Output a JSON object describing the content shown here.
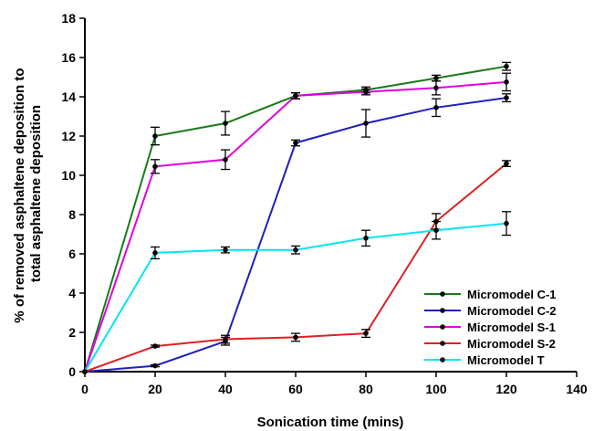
{
  "chart_data": {
    "type": "line",
    "xlabel": "Sonication time (mins)",
    "ylabel_lines": [
      "% of removed asphaltene deposition to",
      "total asphaltene deposition"
    ],
    "xlim": [
      0,
      140
    ],
    "ylim": [
      0,
      18
    ],
    "xticks": [
      0,
      20,
      40,
      60,
      80,
      100,
      120,
      140
    ],
    "yticks": [
      0,
      2,
      4,
      6,
      8,
      10,
      12,
      14,
      16,
      18
    ],
    "grid": false,
    "legend_position": "bottom-right",
    "x": [
      0,
      20,
      40,
      60,
      80,
      100,
      120
    ],
    "series": [
      {
        "name": "Micromodel C-1",
        "color": "#1a7a1a",
        "values": [
          0,
          12.0,
          12.65,
          14.05,
          14.35,
          14.95,
          15.55
        ],
        "errors": [
          0,
          0.45,
          0.6,
          0.15,
          0.15,
          0.15,
          0.2
        ]
      },
      {
        "name": "Micromodel C-2",
        "color": "#1f1fbf",
        "values": [
          0,
          0.3,
          1.55,
          11.65,
          12.65,
          13.45,
          13.95
        ],
        "errors": [
          0,
          0.05,
          0.2,
          0.15,
          0.7,
          0.45,
          0.2
        ]
      },
      {
        "name": "Micromodel S-1",
        "color": "#e000e0",
        "values": [
          0,
          10.45,
          10.8,
          14.05,
          14.25,
          14.45,
          14.75
        ],
        "errors": [
          0,
          0.35,
          0.5,
          0.15,
          0.15,
          0.35,
          0.45
        ]
      },
      {
        "name": "Micromodel S-2",
        "color": "#e02020",
        "values": [
          0,
          1.3,
          1.65,
          1.75,
          1.95,
          7.65,
          10.6
        ],
        "errors": [
          0,
          0.05,
          0.2,
          0.2,
          0.2,
          0.4,
          0.15
        ]
      },
      {
        "name": "Micromodel T",
        "color": "#00e6f0",
        "values": [
          0,
          6.05,
          6.2,
          6.2,
          6.8,
          7.2,
          7.55
        ],
        "errors": [
          0,
          0.3,
          0.15,
          0.2,
          0.4,
          0.45,
          0.6
        ]
      }
    ]
  }
}
